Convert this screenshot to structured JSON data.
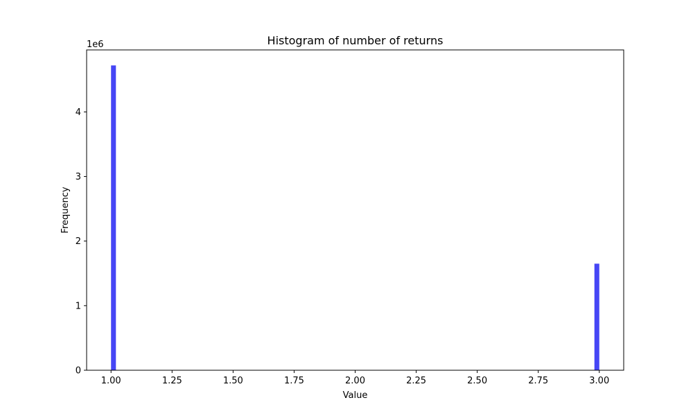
{
  "chart_data": {
    "type": "bar",
    "title": "Histogram of number of returns",
    "xlabel": "Value",
    "ylabel": "Frequency",
    "y_scale_label": "1e6",
    "y_multiplier": 1000000,
    "xlim": [
      0.9,
      3.1
    ],
    "ylim": [
      0,
      4960000
    ],
    "xticks": [
      {
        "value": 1.0,
        "label": "1.00"
      },
      {
        "value": 1.25,
        "label": "1.25"
      },
      {
        "value": 1.5,
        "label": "1.50"
      },
      {
        "value": 1.75,
        "label": "1.75"
      },
      {
        "value": 2.0,
        "label": "2.00"
      },
      {
        "value": 2.25,
        "label": "2.25"
      },
      {
        "value": 2.5,
        "label": "2.50"
      },
      {
        "value": 2.75,
        "label": "2.75"
      },
      {
        "value": 3.0,
        "label": "3.00"
      }
    ],
    "yticks": [
      {
        "value": 0,
        "label": "0"
      },
      {
        "value": 1000000,
        "label": "1"
      },
      {
        "value": 2000000,
        "label": "2"
      },
      {
        "value": 3000000,
        "label": "3"
      },
      {
        "value": 4000000,
        "label": "4"
      }
    ],
    "bins": [
      {
        "x0": 1.0,
        "x1": 1.02,
        "count": 4720000
      },
      {
        "x0": 2.98,
        "x1": 3.0,
        "count": 1650000
      }
    ],
    "bar_color": "#4646f5",
    "grid": false,
    "legend": "none"
  }
}
